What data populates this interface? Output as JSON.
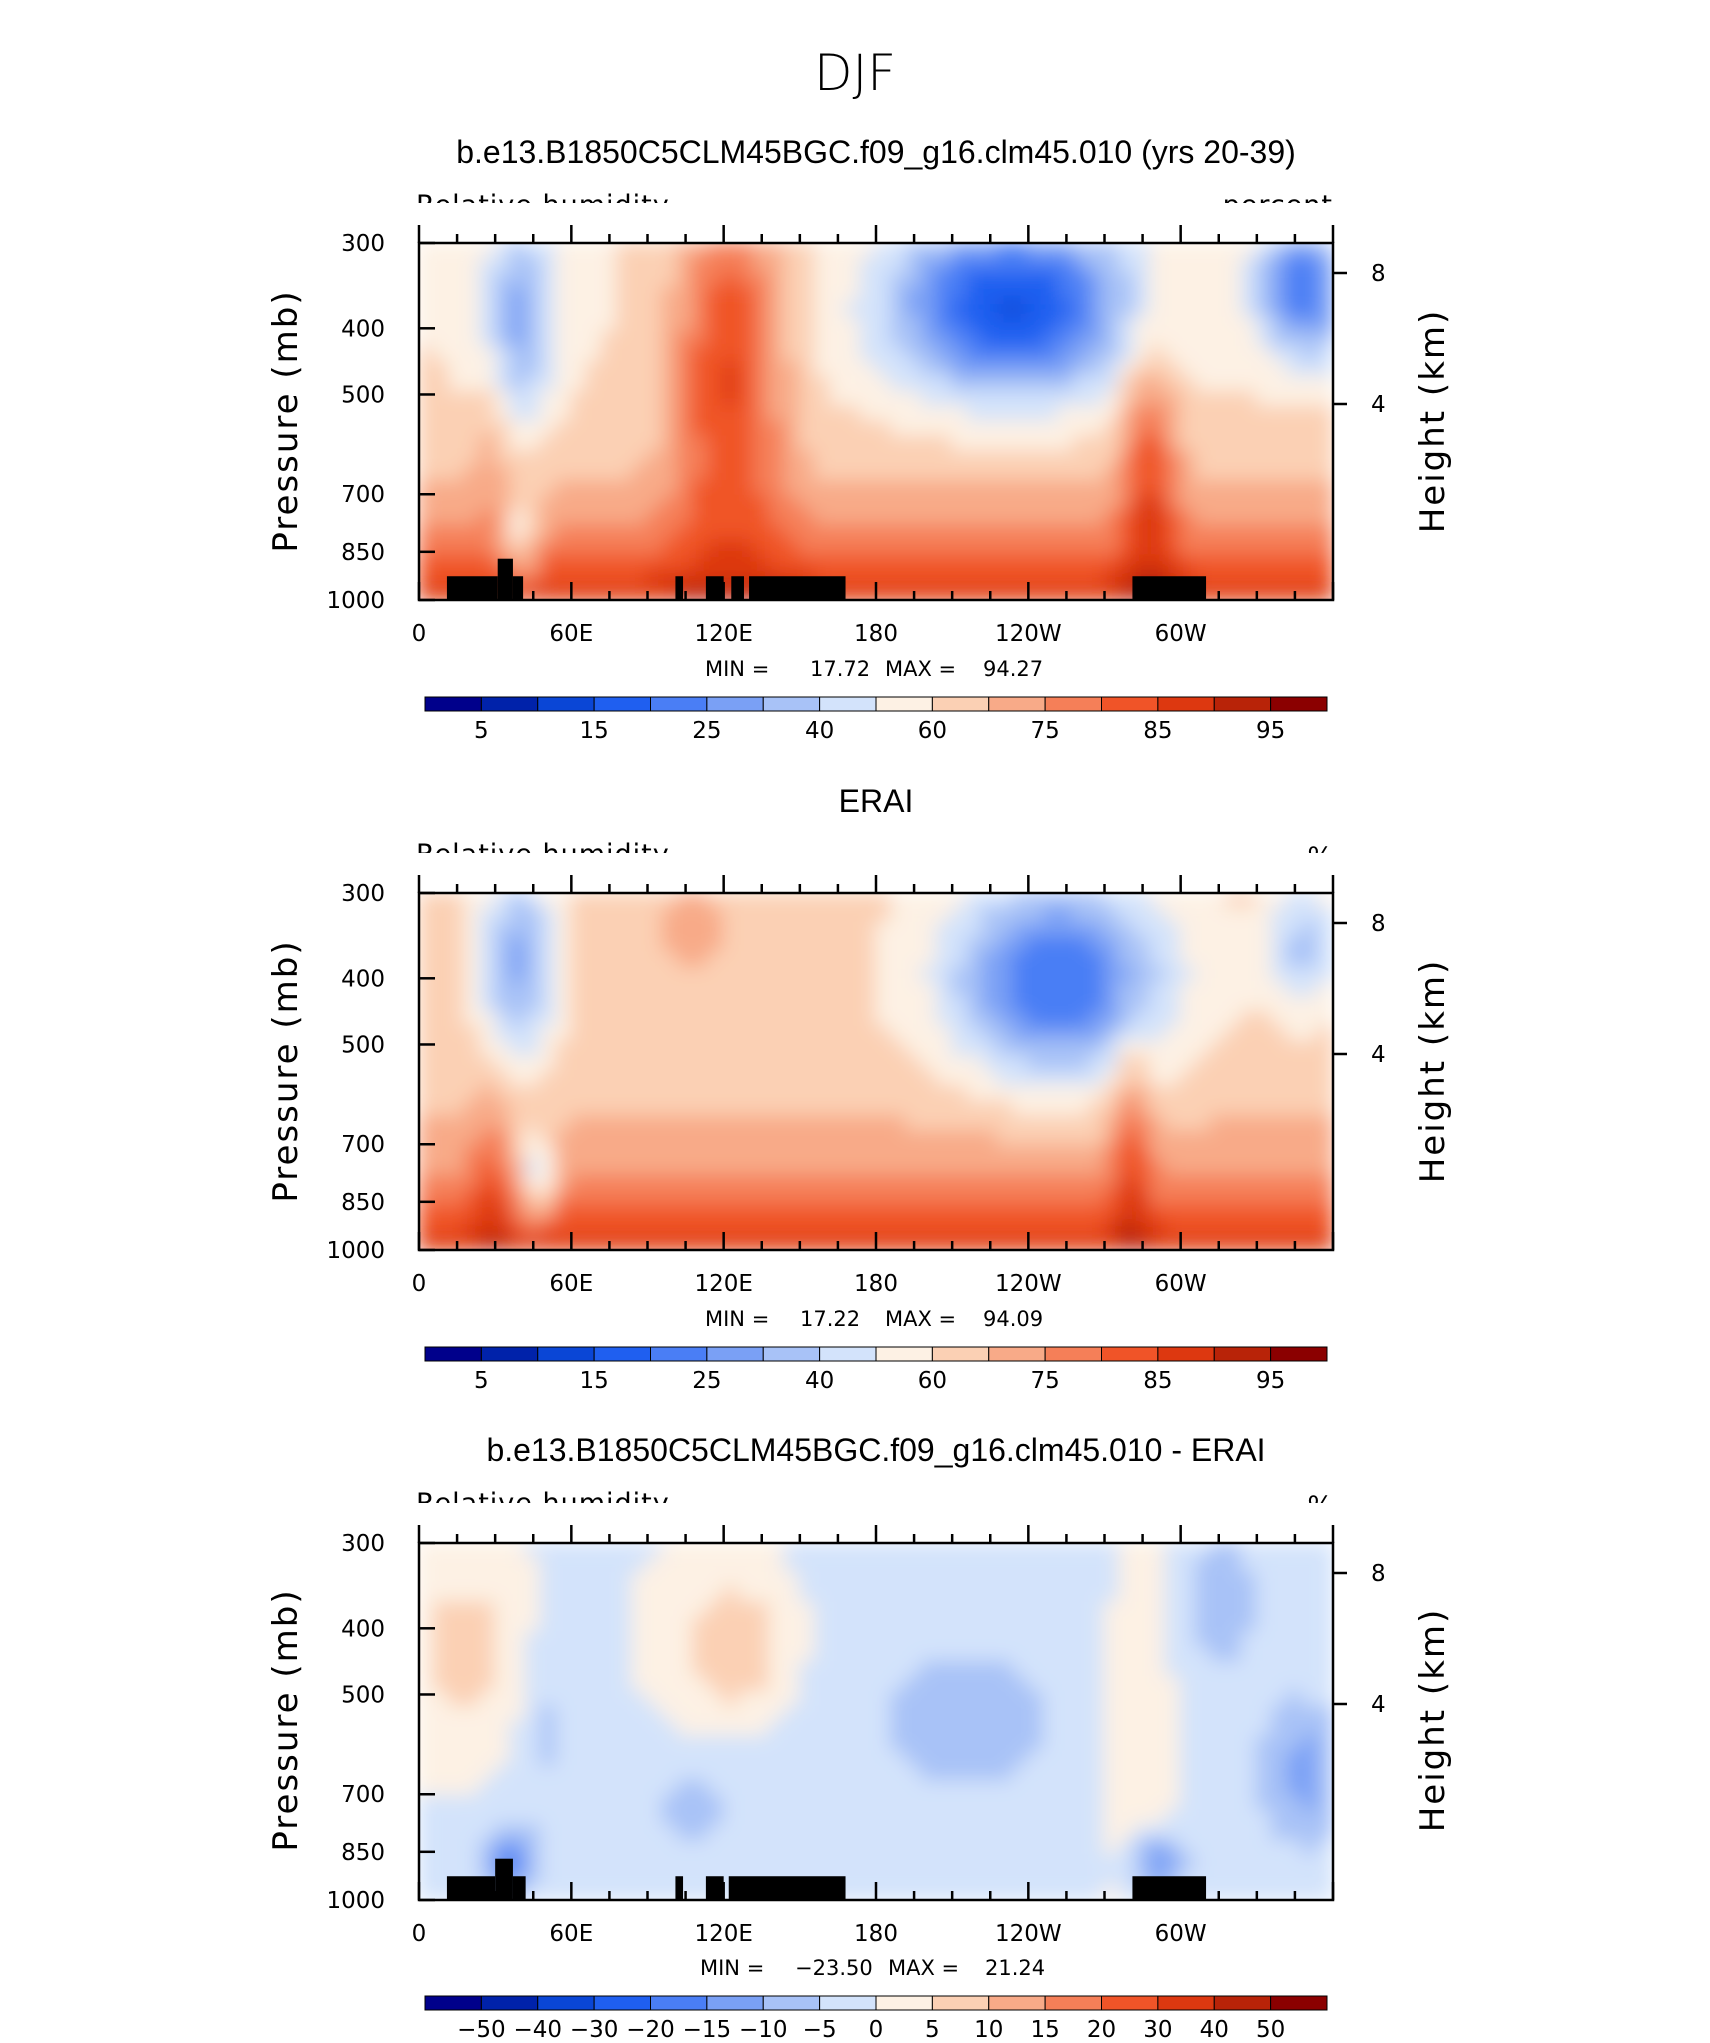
{
  "page_title": "DJF",
  "chart_data": [
    {
      "type": "heatmap",
      "title": "b.e13.B1850C5CLM45BGC.f09_g16.clm45.010 (yrs 20-39)",
      "left_label": "Relative humidity",
      "right_label": "percent",
      "ylabel": "Pressure (mb)",
      "y2label": "Height (km)",
      "xticks": [
        "0",
        "60E",
        "120E",
        "180",
        "120W",
        "60W"
      ],
      "yticks": [
        "300",
        "400",
        "500",
        "700",
        "850",
        "1000"
      ],
      "y2ticks": [
        "8",
        "4"
      ],
      "min_label": "MIN =",
      "min_value": "17.72",
      "max_label": "MAX =",
      "max_value": "94.27",
      "colorbar_labels": [
        "5",
        "15",
        "25",
        "40",
        "60",
        "75",
        "85",
        "95"
      ],
      "colors": [
        "#00008b",
        "#0022aa",
        "#0a46d6",
        "#1f5ff0",
        "#4a7ef5",
        "#7aa0f5",
        "#a8c2f7",
        "#d3e3fb",
        "#fdf1e4",
        "#fbd0b4",
        "#f8aa88",
        "#f57f58",
        "#f05428",
        "#dd3810",
        "#b82308",
        "#8b0000"
      ],
      "field": "model"
    },
    {
      "type": "heatmap",
      "title": "ERAI",
      "left_label": "Relative humidity",
      "right_label": "%",
      "ylabel": "Pressure (mb)",
      "y2label": "Height (km)",
      "xticks": [
        "0",
        "60E",
        "120E",
        "180",
        "120W",
        "60W"
      ],
      "yticks": [
        "300",
        "400",
        "500",
        "700",
        "850",
        "1000"
      ],
      "y2ticks": [
        "8",
        "4"
      ],
      "min_label": "MIN =",
      "min_value": "17.22",
      "max_label": "MAX =",
      "max_value": "94.09",
      "colorbar_labels": [
        "5",
        "15",
        "25",
        "40",
        "60",
        "75",
        "85",
        "95"
      ],
      "colors": [
        "#00008b",
        "#0022aa",
        "#0a46d6",
        "#1f5ff0",
        "#4a7ef5",
        "#7aa0f5",
        "#a8c2f7",
        "#d3e3fb",
        "#fdf1e4",
        "#fbd0b4",
        "#f8aa88",
        "#f57f58",
        "#f05428",
        "#dd3810",
        "#b82308",
        "#8b0000"
      ],
      "field": "obs"
    },
    {
      "type": "heatmap",
      "title": "b.e13.B1850C5CLM45BGC.f09_g16.clm45.010 - ERAI",
      "left_label": "Relative humidity",
      "right_label": "%",
      "ylabel": "Pressure (mb)",
      "y2label": "Height (km)",
      "xticks": [
        "0",
        "60E",
        "120E",
        "180",
        "120W",
        "60W"
      ],
      "yticks": [
        "300",
        "400",
        "500",
        "700",
        "850",
        "1000"
      ],
      "y2ticks": [
        "8",
        "4"
      ],
      "min_label": "MIN =",
      "min_value": "−23.50",
      "max_label": "MAX =",
      "max_value": "21.24",
      "colorbar_labels": [
        "−50",
        "−40",
        "−30",
        "−20",
        "−15",
        "−10",
        "−5",
        "0",
        "5",
        "10",
        "15",
        "20",
        "30",
        "40",
        "50"
      ],
      "colors": [
        "#00008b",
        "#0022aa",
        "#0a46d6",
        "#1f5ff0",
        "#4a7ef5",
        "#7aa0f5",
        "#a8c2f7",
        "#d3e3fb",
        "#fdf1e4",
        "#fbd0b4",
        "#f8aa88",
        "#f57f58",
        "#f05428",
        "#dd3810",
        "#b82308",
        "#8b0000"
      ],
      "field": "diff"
    }
  ]
}
